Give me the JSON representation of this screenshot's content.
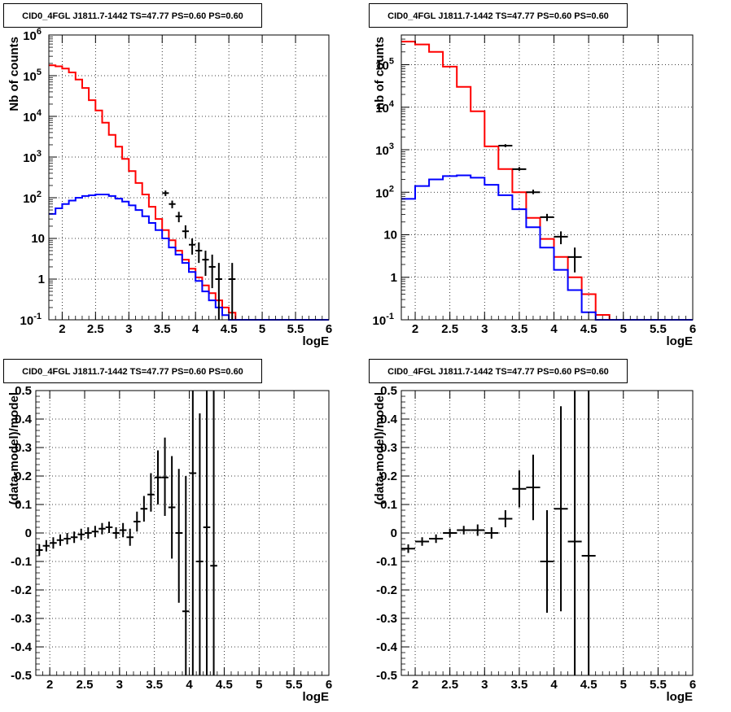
{
  "chart_data": [
    {
      "type": "line",
      "title": "CID0_4FGL J1811.7-1442 TS=47.77 PS=0.60 PS=0.60",
      "xlabel": "logE",
      "ylabel": "Nb of counts",
      "xlim": [
        1.8,
        6.0
      ],
      "ylim": [
        0.1,
        1000000
      ],
      "yscale": "log",
      "grid": true,
      "x_ticks": [
        "2",
        "2.5",
        "3",
        "3.5",
        "4",
        "4.5",
        "5",
        "5.5",
        "6"
      ],
      "y_ticks": [
        "10^-1",
        "1",
        "10",
        "10^2",
        "10^3",
        "10^4",
        "10^5",
        "10^6"
      ],
      "bin_edges": [
        1.8,
        1.9,
        2.0,
        2.1,
        2.2,
        2.3,
        2.4,
        2.5,
        2.6,
        2.7,
        2.8,
        2.9,
        3.0,
        3.1,
        3.2,
        3.3,
        3.4,
        3.5,
        3.6,
        3.7,
        3.8,
        3.9,
        4.0,
        4.1,
        4.2,
        4.3,
        4.4,
        4.5,
        4.6,
        4.7,
        4.8,
        4.9,
        5.0,
        5.1,
        5.2,
        5.3,
        5.4,
        5.5,
        5.6,
        5.7,
        5.8,
        5.9,
        6.0
      ],
      "series": [
        {
          "color": "#ff0000",
          "style": "step",
          "values": [
            180000,
            170000,
            150000,
            120000,
            80000,
            50000,
            25000,
            14000,
            7000,
            3500,
            1800,
            900,
            450,
            230,
            120,
            60,
            30,
            16,
            9,
            5,
            3,
            1.8,
            1.1,
            0.7,
            0.45,
            0.3,
            0.2,
            0.15,
            0.1,
            0.1,
            0.1,
            0.1,
            0.1,
            0.1,
            0.1,
            0.1,
            0.1,
            0.1,
            0.1,
            0.1,
            0.1,
            0.1
          ]
        },
        {
          "color": "#0000ff",
          "style": "step",
          "values": [
            40,
            55,
            70,
            85,
            100,
            110,
            115,
            120,
            120,
            110,
            95,
            80,
            65,
            50,
            35,
            24,
            16,
            10,
            6,
            4,
            2.5,
            1.5,
            0.9,
            0.5,
            0.3,
            0.2,
            0.13,
            0.1,
            0.1,
            0.1,
            0.1,
            0.1,
            0.1,
            0.1,
            0.1,
            0.1,
            0.1,
            0.1,
            0.1,
            0.1,
            0.1,
            0.1
          ]
        }
      ],
      "points": [
        {
          "x": 3.55,
          "y": 130,
          "ylo": 110,
          "yhi": 150,
          "xerr": 0.05
        },
        {
          "x": 3.65,
          "y": 70,
          "ylo": 55,
          "yhi": 85,
          "xerr": 0.05
        },
        {
          "x": 3.75,
          "y": 35,
          "ylo": 25,
          "yhi": 45,
          "xerr": 0.05
        },
        {
          "x": 3.85,
          "y": 15,
          "ylo": 10,
          "yhi": 21,
          "xerr": 0.05
        },
        {
          "x": 3.95,
          "y": 7,
          "ylo": 4,
          "yhi": 10,
          "xerr": 0.05
        },
        {
          "x": 4.05,
          "y": 5,
          "ylo": 2.5,
          "yhi": 8,
          "xerr": 0.05
        },
        {
          "x": 4.15,
          "y": 3,
          "ylo": 1.2,
          "yhi": 5,
          "xerr": 0.05
        },
        {
          "x": 4.25,
          "y": 2,
          "ylo": 0.6,
          "yhi": 4,
          "xerr": 0.05
        },
        {
          "x": 4.35,
          "y": 1,
          "ylo": 0.1,
          "yhi": 2.5,
          "xerr": 0.05
        },
        {
          "x": 4.55,
          "y": 1,
          "ylo": 0.1,
          "yhi": 2.5,
          "xerr": 0.05
        }
      ]
    },
    {
      "type": "line",
      "title": "CID0_4FGL J1811.7-1442 TS=47.77 PS=0.60 PS=0.60",
      "xlabel": "logE",
      "ylabel": "nb of counts",
      "xlim": [
        1.8,
        6.0
      ],
      "ylim": [
        0.1,
        500000
      ],
      "yscale": "log",
      "grid": true,
      "x_ticks": [
        "2",
        "2.5",
        "3",
        "3.5",
        "4",
        "4.5",
        "5",
        "5.5",
        "6"
      ],
      "y_ticks": [
        "10^-1",
        "1",
        "10",
        "10^2",
        "10^3",
        "10^4",
        "10^5"
      ],
      "bin_edges": [
        1.8,
        2.0,
        2.2,
        2.4,
        2.6,
        2.8,
        3.0,
        3.2,
        3.4,
        3.6,
        3.8,
        4.0,
        4.2,
        4.4,
        4.6,
        4.8,
        5.0,
        5.2,
        5.4,
        5.6,
        5.8,
        6.0
      ],
      "series": [
        {
          "color": "#ff0000",
          "style": "step",
          "values": [
            350000,
            300000,
            200000,
            90000,
            30000,
            8000,
            1200,
            350,
            100,
            25,
            8,
            3,
            1,
            0.4,
            0.13,
            0.1,
            0.1,
            0.1,
            0.1,
            0.1,
            0.1
          ]
        },
        {
          "color": "#0000ff",
          "style": "step",
          "values": [
            70,
            140,
            200,
            240,
            250,
            220,
            150,
            85,
            40,
            15,
            5,
            1.5,
            0.5,
            0.15,
            0.1,
            0.1,
            0.1,
            0.1,
            0.1,
            0.1,
            0.1
          ]
        }
      ],
      "points": [
        {
          "x": 3.3,
          "y": 1250,
          "ylo": 1150,
          "yhi": 1350,
          "xerr": 0.1
        },
        {
          "x": 3.5,
          "y": 350,
          "ylo": 320,
          "yhi": 390,
          "xerr": 0.1
        },
        {
          "x": 3.7,
          "y": 100,
          "ylo": 90,
          "yhi": 115,
          "xerr": 0.1
        },
        {
          "x": 3.9,
          "y": 26,
          "ylo": 21,
          "yhi": 31,
          "xerr": 0.1
        },
        {
          "x": 4.1,
          "y": 9,
          "ylo": 6,
          "yhi": 12,
          "xerr": 0.1
        },
        {
          "x": 4.3,
          "y": 3,
          "ylo": 1.3,
          "yhi": 5,
          "xerr": 0.1
        }
      ]
    },
    {
      "type": "scatter",
      "title": "CID0_4FGL J1811.7-1442 TS=47.77 PS=0.60 PS=0.60",
      "xlabel": "logE",
      "ylabel": "(data-model)/model",
      "xlim": [
        1.8,
        6.0
      ],
      "ylim": [
        -0.5,
        0.5
      ],
      "grid": true,
      "x_ticks": [
        "2",
        "2.5",
        "3",
        "3.5",
        "4",
        "4.5",
        "5",
        "5.5",
        "6"
      ],
      "y_ticks": [
        "-0.5",
        "-0.4",
        "-0.3",
        "-0.2",
        "-0.1",
        "0",
        "0.1",
        "0.2",
        "0.3",
        "0.4",
        "0.5"
      ],
      "points": [
        {
          "x": 1.85,
          "y": -0.06,
          "ylo": -0.08,
          "yhi": -0.04,
          "xerr": 0.05
        },
        {
          "x": 1.95,
          "y": -0.045,
          "ylo": -0.065,
          "yhi": -0.025,
          "xerr": 0.05
        },
        {
          "x": 2.05,
          "y": -0.035,
          "ylo": -0.055,
          "yhi": -0.015,
          "xerr": 0.05
        },
        {
          "x": 2.15,
          "y": -0.025,
          "ylo": -0.045,
          "yhi": -0.005,
          "xerr": 0.05
        },
        {
          "x": 2.25,
          "y": -0.02,
          "ylo": -0.04,
          "yhi": 0.0,
          "xerr": 0.05
        },
        {
          "x": 2.35,
          "y": -0.015,
          "ylo": -0.035,
          "yhi": 0.005,
          "xerr": 0.05
        },
        {
          "x": 2.45,
          "y": -0.005,
          "ylo": -0.025,
          "yhi": 0.015,
          "xerr": 0.05
        },
        {
          "x": 2.55,
          "y": 0.0,
          "ylo": -0.02,
          "yhi": 0.02,
          "xerr": 0.05
        },
        {
          "x": 2.65,
          "y": 0.005,
          "ylo": -0.015,
          "yhi": 0.025,
          "xerr": 0.05
        },
        {
          "x": 2.75,
          "y": 0.015,
          "ylo": -0.005,
          "yhi": 0.035,
          "xerr": 0.05
        },
        {
          "x": 2.85,
          "y": 0.02,
          "ylo": 0.0,
          "yhi": 0.04,
          "xerr": 0.05
        },
        {
          "x": 2.95,
          "y": 0.0,
          "ylo": -0.02,
          "yhi": 0.02,
          "xerr": 0.05
        },
        {
          "x": 3.05,
          "y": 0.01,
          "ylo": -0.015,
          "yhi": 0.035,
          "xerr": 0.05
        },
        {
          "x": 3.15,
          "y": -0.015,
          "ylo": -0.045,
          "yhi": 0.015,
          "xerr": 0.05
        },
        {
          "x": 3.25,
          "y": 0.04,
          "ylo": 0.005,
          "yhi": 0.075,
          "xerr": 0.05
        },
        {
          "x": 3.35,
          "y": 0.085,
          "ylo": 0.04,
          "yhi": 0.13,
          "xerr": 0.05
        },
        {
          "x": 3.45,
          "y": 0.135,
          "ylo": 0.075,
          "yhi": 0.21,
          "xerr": 0.05
        },
        {
          "x": 3.55,
          "y": 0.195,
          "ylo": 0.1,
          "yhi": 0.29,
          "xerr": 0.05
        },
        {
          "x": 3.65,
          "y": 0.195,
          "ylo": 0.06,
          "yhi": 0.335,
          "xerr": 0.05
        },
        {
          "x": 3.75,
          "y": 0.09,
          "ylo": -0.09,
          "yhi": 0.27,
          "xerr": 0.05
        },
        {
          "x": 3.85,
          "y": 0.0,
          "ylo": -0.245,
          "yhi": 0.225,
          "xerr": 0.05
        },
        {
          "x": 3.95,
          "y": -0.275,
          "ylo": -0.5,
          "yhi": 0.2,
          "xerr": 0.05
        },
        {
          "x": 4.05,
          "y": 0.21,
          "ylo": -0.5,
          "yhi": 0.5,
          "xerr": 0.05
        },
        {
          "x": 4.15,
          "y": -0.1,
          "ylo": -0.5,
          "yhi": 0.42,
          "xerr": 0.05
        },
        {
          "x": 4.25,
          "y": 0.02,
          "ylo": -0.5,
          "yhi": 0.5,
          "xerr": 0.05
        },
        {
          "x": 4.35,
          "y": -0.115,
          "ylo": -0.5,
          "yhi": 0.5,
          "xerr": 0.05
        }
      ]
    },
    {
      "type": "scatter",
      "title": "CID0_4FGL J1811.7-1442 TS=47.77 PS=0.60 PS=0.60",
      "xlabel": "logE",
      "ylabel": "(data-model)/model",
      "xlim": [
        1.8,
        6.0
      ],
      "ylim": [
        -0.5,
        0.5
      ],
      "grid": true,
      "x_ticks": [
        "2",
        "2.5",
        "3",
        "3.5",
        "4",
        "4.5",
        "5",
        "5.5",
        "6"
      ],
      "y_ticks": [
        "-0.5",
        "-0.4",
        "-0.3",
        "-0.2",
        "-0.1",
        "0",
        "0.1",
        "0.2",
        "0.3",
        "0.4",
        "0.5"
      ],
      "points": [
        {
          "x": 1.9,
          "y": -0.055,
          "ylo": -0.07,
          "yhi": -0.04,
          "xerr": 0.1
        },
        {
          "x": 2.1,
          "y": -0.03,
          "ylo": -0.045,
          "yhi": -0.015,
          "xerr": 0.1
        },
        {
          "x": 2.3,
          "y": -0.02,
          "ylo": -0.035,
          "yhi": -0.005,
          "xerr": 0.1
        },
        {
          "x": 2.5,
          "y": 0.0,
          "ylo": -0.015,
          "yhi": 0.015,
          "xerr": 0.1
        },
        {
          "x": 2.7,
          "y": 0.01,
          "ylo": -0.005,
          "yhi": 0.025,
          "xerr": 0.1
        },
        {
          "x": 2.9,
          "y": 0.01,
          "ylo": -0.01,
          "yhi": 0.03,
          "xerr": 0.1
        },
        {
          "x": 3.1,
          "y": 0.0,
          "ylo": -0.02,
          "yhi": 0.02,
          "xerr": 0.1
        },
        {
          "x": 3.3,
          "y": 0.05,
          "ylo": 0.02,
          "yhi": 0.08,
          "xerr": 0.1
        },
        {
          "x": 3.5,
          "y": 0.155,
          "ylo": 0.09,
          "yhi": 0.22,
          "xerr": 0.1
        },
        {
          "x": 3.7,
          "y": 0.16,
          "ylo": 0.045,
          "yhi": 0.275,
          "xerr": 0.1
        },
        {
          "x": 3.9,
          "y": -0.1,
          "ylo": -0.28,
          "yhi": 0.08,
          "xerr": 0.1
        },
        {
          "x": 4.1,
          "y": 0.085,
          "ylo": -0.275,
          "yhi": 0.445,
          "xerr": 0.1
        },
        {
          "x": 4.3,
          "y": -0.03,
          "ylo": -0.5,
          "yhi": 0.5,
          "xerr": 0.1
        },
        {
          "x": 4.5,
          "y": -0.08,
          "ylo": -0.5,
          "yhi": 0.5,
          "xerr": 0.1
        }
      ]
    }
  ]
}
